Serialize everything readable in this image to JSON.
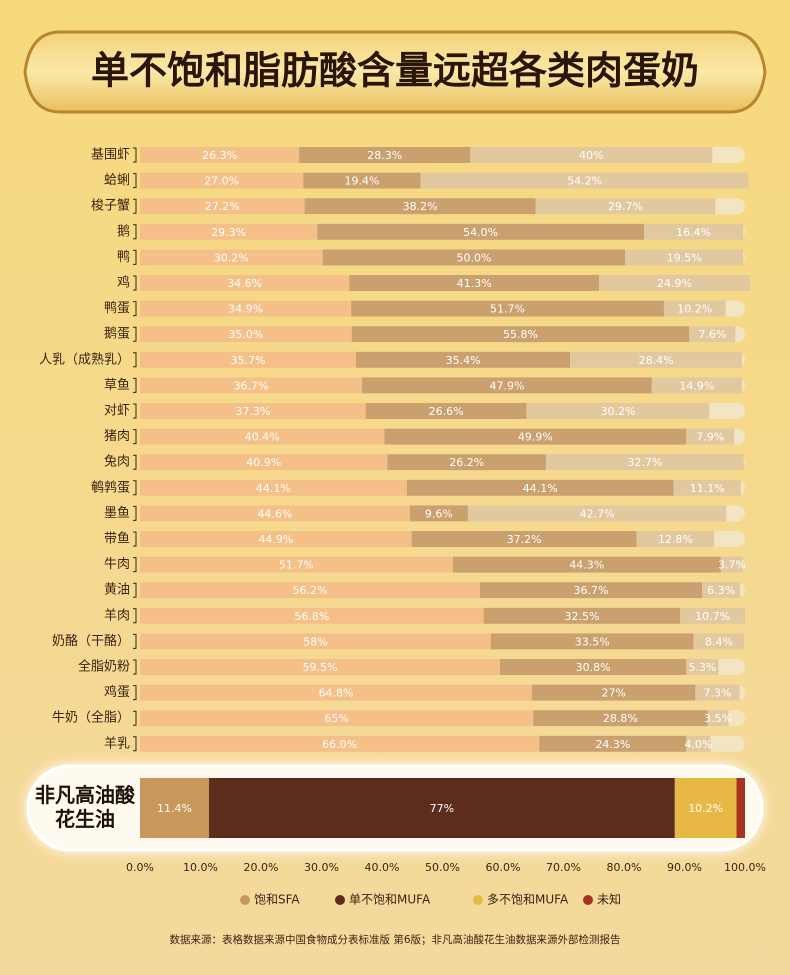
{
  "chart_data": {
    "type": "stacked-bar-horizontal",
    "title": "单不饱和脂肪酸含量远超各类肉蛋奶",
    "categories": [
      "基围虾",
      "蛤蜊",
      "梭子蟹",
      "鹅",
      "鸭",
      "鸡",
      "鸭蛋",
      "鹅蛋",
      "人乳（成熟乳）",
      "草鱼",
      "对虾",
      "猪肉",
      "兔肉",
      "鹌鹑蛋",
      "墨鱼",
      "带鱼",
      "牛肉",
      "黄油",
      "羊肉",
      "奶酪（干酪）",
      "全脂奶粉",
      "鸡蛋",
      "牛奶（全脂）",
      "羊乳",
      "非凡高油酸花生油"
    ],
    "series": [
      {
        "name": "饱和SFA",
        "color": "#c8975a",
        "light_color": "#f5bf88",
        "values": [
          26.3,
          27.0,
          27.2,
          29.3,
          30.2,
          34.6,
          34.9,
          35.0,
          35.7,
          36.7,
          37.3,
          40.4,
          40.9,
          44.1,
          44.6,
          44.9,
          51.7,
          56.2,
          56.8,
          58,
          59.5,
          64.8,
          65,
          66.0,
          11.4
        ],
        "value_labels": [
          "26.3%",
          "27.0%",
          "27.2%",
          "29.3%",
          "30.2%",
          "34.6%",
          "34.9%",
          "35.0%",
          "35.7%",
          "36.7%",
          "37.3%",
          "40.4%",
          "40.9%",
          "44.1%",
          "44.6%",
          "44.9%",
          "51.7%",
          "56.2%",
          "56.8%",
          "58%",
          "59.5%",
          "64.8%",
          "65%",
          "66.0%",
          "11.4%"
        ]
      },
      {
        "name": "单不饱和MUFA",
        "color": "#5c2d1c",
        "light_color": "#caa06e",
        "values": [
          28.3,
          19.4,
          38.2,
          54.0,
          50.0,
          41.3,
          51.7,
          55.8,
          35.4,
          47.9,
          26.6,
          49.9,
          26.2,
          44.1,
          9.6,
          37.2,
          44.3,
          36.7,
          32.5,
          33.5,
          30.8,
          27,
          28.8,
          24.3,
          77
        ],
        "value_labels": [
          "28.3%",
          "19.4%",
          "38.2%",
          "54.0%",
          "50.0%",
          "41.3%",
          "51.7%",
          "55.8%",
          "35.4%",
          "47.9%",
          "26.6%",
          "49.9%",
          "26.2%",
          "44.1%",
          "9.6%",
          "37.2%",
          "44.3%",
          "36.7%",
          "32.5%",
          "33.5%",
          "30.8%",
          "27%",
          "28.8%",
          "24.3%",
          "77%"
        ]
      },
      {
        "name": "多不饱和MUFA",
        "color": "#e8b845",
        "light_color": "#e2c89f",
        "values": [
          40,
          54.2,
          29.7,
          16.4,
          19.5,
          24.9,
          10.2,
          7.6,
          28.4,
          14.9,
          30.2,
          7.9,
          32.7,
          11.1,
          42.7,
          12.8,
          3.7,
          6.3,
          10.7,
          8.4,
          5.3,
          7.3,
          3.5,
          4.0,
          10.2
        ],
        "value_labels": [
          "40%",
          "54.2%",
          "29.7%",
          "16.4%",
          "19.5%",
          "24.9%",
          "10.2%",
          "7.6%",
          "28.4%",
          "14.9%",
          "30.2%",
          "7.9%",
          "32.7%",
          "11.1%",
          "42.7%",
          "12.8%",
          "3.7%",
          "6.3%",
          "10.7%",
          "8.4%",
          "5.3%",
          "7.3%",
          "3.5%",
          "4.0%",
          "10.2%"
        ]
      },
      {
        "name": "未知",
        "color": "#a8321f",
        "light_color": "#f3e4c4",
        "values": [
          null,
          null,
          null,
          null,
          null,
          null,
          null,
          null,
          null,
          null,
          null,
          null,
          null,
          null,
          null,
          null,
          null,
          null,
          null,
          null,
          null,
          null,
          null,
          null,
          1.4
        ]
      }
    ],
    "xlim": [
      0,
      100
    ],
    "xticks": [
      {
        "value": 0,
        "label": "0.0%"
      },
      {
        "value": 10,
        "label": "10.0%"
      },
      {
        "value": 20,
        "label": "20.0%"
      },
      {
        "value": 30,
        "label": "30.0%"
      },
      {
        "value": 40,
        "label": "40.0%"
      },
      {
        "value": 50,
        "label": "50.0%"
      },
      {
        "value": 60,
        "label": "60.0%"
      },
      {
        "value": 70,
        "label": "70.0%"
      },
      {
        "value": 80,
        "label": "80.0%"
      },
      {
        "value": 90,
        "label": "90.0%"
      },
      {
        "value": 100,
        "label": "100.0%"
      }
    ],
    "footnote": "数据来源：表格数据来源中国食物成分表标准版 第6版；非凡高油酸花生油数据来源外部检测报告"
  }
}
